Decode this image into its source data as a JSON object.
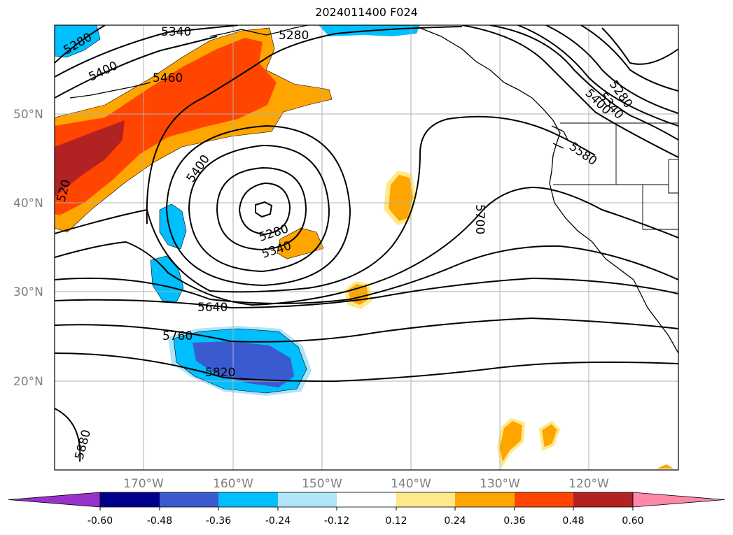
{
  "title": "2024011400 F024",
  "lat_labels": [
    "50°N",
    "40°N",
    "30°N",
    "20°N"
  ],
  "lon_labels": [
    "170°W",
    "160°W",
    "150°W",
    "140°W",
    "130°W",
    "120°W"
  ],
  "contour_labels": [
    "5340",
    "5280",
    "5280",
    "5400",
    "5460",
    "5400",
    "5280",
    "5340",
    "5280",
    "5340",
    "5400",
    "5580",
    "5700",
    "5640",
    "5760",
    "5820",
    "5880",
    "520"
  ],
  "colorbar": {
    "ticks": [
      "-0.60",
      "-0.48",
      "-0.36",
      "-0.24",
      "-0.12",
      "0.12",
      "0.24",
      "0.36",
      "0.48",
      "0.60"
    ],
    "colors": [
      "#9932CC",
      "#00008B",
      "#3A5BCF",
      "#00BFFF",
      "#AFE4FA",
      "#FFFFFF",
      "#FFE98A",
      "#FFA500",
      "#FF4500",
      "#B22222",
      "#FF88AA"
    ]
  }
}
